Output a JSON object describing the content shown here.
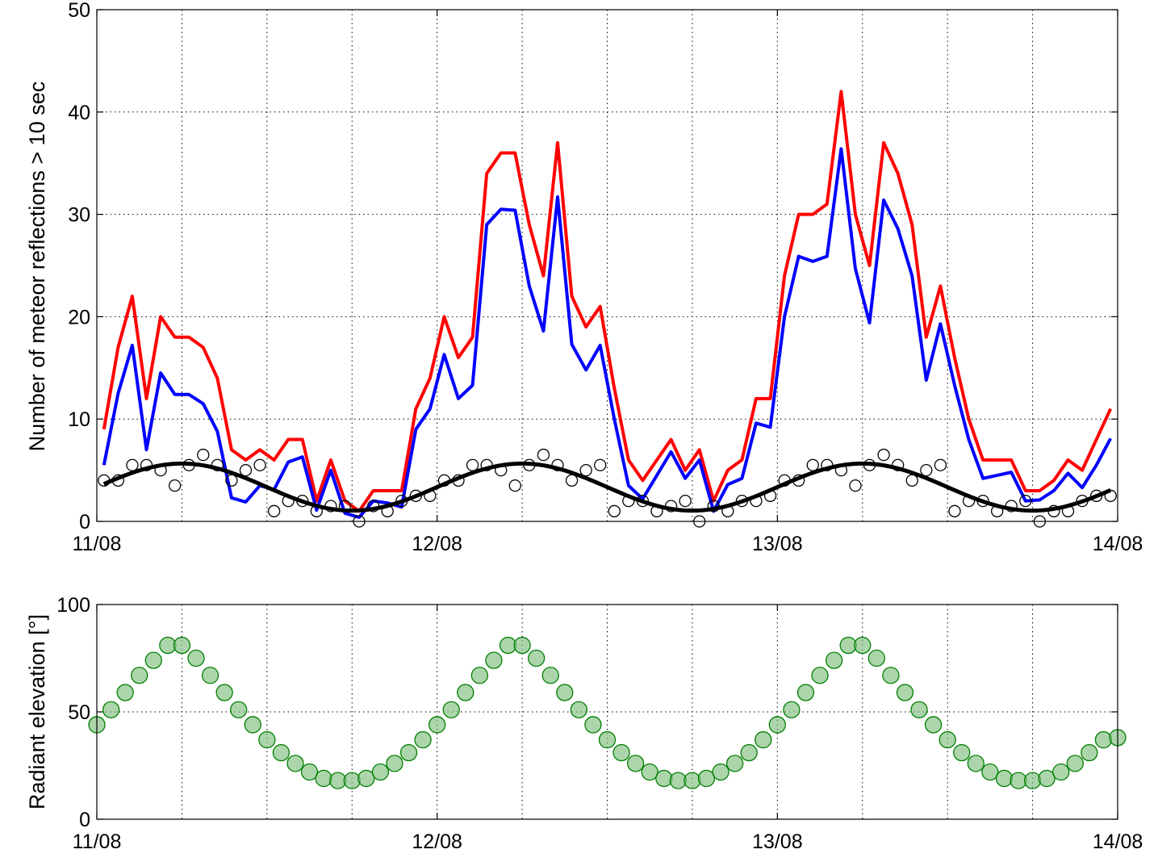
{
  "chart_data": [
    {
      "type": "line",
      "ylabel": "Number of meteor reflections > 10 sec",
      "xlabel": "",
      "x_tick_labels": [
        "11/08",
        "12/08",
        "13/08",
        "14/08"
      ],
      "y_ticks": [
        0,
        10,
        20,
        30,
        40,
        50
      ],
      "xlim": [
        0,
        72
      ],
      "ylim": [
        0,
        50
      ],
      "grid": true,
      "x_units": "hours from 11/08 00:00",
      "series": [
        {
          "style": "line",
          "color": "#ff0000",
          "x": [
            0.5,
            1.5,
            2.5,
            3.5,
            4.5,
            5.5,
            6.5,
            7.5,
            8.5,
            9.5,
            10.5,
            11.5,
            12.5,
            13.5,
            14.5,
            15.5,
            16.5,
            17.5,
            18.5,
            19.5,
            20.5,
            21.5,
            22.5,
            23.5,
            24.5,
            25.5,
            26.5,
            27.5,
            28.5,
            29.5,
            30.5,
            31.5,
            32.5,
            33.5,
            34.5,
            35.5,
            36.5,
            37.5,
            38.5,
            39.5,
            40.5,
            41.5,
            42.5,
            43.5,
            44.5,
            45.5,
            46.5,
            47.5,
            48.5,
            49.5,
            50.5,
            51.5,
            52.5,
            53.5,
            54.5,
            55.5,
            56.5,
            57.5,
            58.5,
            59.5,
            60.5,
            61.5,
            62.5,
            63.5,
            64.5,
            65.5,
            66.5,
            67.5,
            68.5,
            69.5,
            70.5,
            71.5
          ],
          "values": [
            9,
            17,
            22,
            12,
            20,
            18,
            18,
            17,
            14,
            7,
            6,
            7,
            6,
            8,
            8,
            2,
            6,
            2,
            1,
            3,
            3,
            3,
            11,
            14,
            20,
            16,
            18,
            34,
            36,
            36,
            29,
            24,
            37,
            22,
            19,
            21,
            13,
            6,
            4,
            6,
            8,
            5,
            7,
            2,
            5,
            6,
            12,
            12,
            24,
            30,
            30,
            31,
            42,
            30,
            25,
            37,
            34,
            29,
            18,
            23,
            16,
            10,
            6,
            6,
            6,
            3,
            3,
            4,
            6,
            5,
            8,
            11
          ]
        },
        {
          "style": "line",
          "color": "#0000ff",
          "x": [
            0.5,
            1.5,
            2.5,
            3.5,
            4.5,
            5.5,
            6.5,
            7.5,
            8.5,
            9.5,
            10.5,
            11.5,
            12.5,
            13.5,
            14.5,
            15.5,
            16.5,
            17.5,
            18.5,
            19.5,
            20.5,
            21.5,
            22.5,
            23.5,
            24.5,
            25.5,
            26.5,
            27.5,
            28.5,
            29.5,
            30.5,
            31.5,
            32.5,
            33.5,
            34.5,
            35.5,
            36.5,
            37.5,
            38.5,
            39.5,
            40.5,
            41.5,
            42.5,
            43.5,
            44.5,
            45.5,
            46.5,
            47.5,
            48.5,
            49.5,
            50.5,
            51.5,
            52.5,
            53.5,
            54.5,
            55.5,
            56.5,
            57.5,
            58.5,
            59.5,
            60.5,
            61.5,
            62.5,
            63.5,
            64.5,
            65.5,
            66.5,
            67.5,
            68.5,
            69.5,
            70.5,
            71.5
          ],
          "values": [
            5.5,
            12.5,
            17.2,
            7,
            14.5,
            12.4,
            12.4,
            11.5,
            8.8,
            2.3,
            1.9,
            3.5,
            3.1,
            5.8,
            6.3,
            1.1,
            5,
            0.8,
            0.4,
            2,
            1.8,
            1.4,
            9,
            11,
            16.3,
            12,
            13.3,
            29,
            30.5,
            30.4,
            23,
            18.6,
            31.7,
            17.3,
            14.8,
            17.2,
            10,
            3.5,
            2.2,
            4.5,
            6.8,
            4.2,
            6,
            1,
            3.6,
            4.2,
            9.6,
            9.2,
            20,
            25.9,
            25.4,
            25.9,
            36.4,
            24.7,
            19.4,
            31.4,
            28.6,
            24,
            13.8,
            19.3,
            13.3,
            8,
            4.2,
            4.5,
            4.8,
            2,
            2.1,
            3,
            4.7,
            3.3,
            5.5,
            8.1
          ]
        },
        {
          "style": "markers",
          "marker": "open-circle",
          "color": "#000000",
          "x": [
            0.5,
            1.5,
            2.5,
            3.5,
            4.5,
            5.5,
            6.5,
            7.5,
            8.5,
            9.5,
            10.5,
            11.5,
            12.5,
            13.5,
            14.5,
            15.5,
            16.5,
            17.5,
            18.5,
            19.5,
            20.5,
            21.5,
            22.5,
            23.5,
            24.5,
            25.5,
            26.5,
            27.5,
            28.5,
            29.5,
            30.5,
            31.5,
            32.5,
            33.5,
            34.5,
            35.5,
            36.5,
            37.5,
            38.5,
            39.5,
            40.5,
            41.5,
            42.5,
            43.5,
            44.5,
            45.5,
            46.5,
            47.5,
            48.5,
            49.5,
            50.5,
            51.5,
            52.5,
            53.5,
            54.5,
            55.5,
            56.5,
            57.5,
            58.5,
            59.5,
            60.5,
            61.5,
            62.5,
            63.5,
            64.5,
            65.5,
            66.5,
            67.5,
            68.5,
            69.5,
            70.5,
            71.5
          ],
          "values": [
            4,
            4,
            5.5,
            5.5,
            5,
            3.5,
            5.5,
            6.5,
            5.5,
            4,
            5,
            5.5,
            1,
            2,
            2,
            1,
            1.5,
            1.5,
            0,
            1.5,
            1,
            2,
            2.5,
            2.5,
            4,
            4,
            5.5,
            5.5,
            5,
            3.5,
            5.5,
            6.5,
            5.5,
            4,
            5,
            5.5,
            1,
            2,
            2,
            1,
            1.5,
            2,
            0,
            1.5,
            1,
            2,
            2,
            2.5,
            4,
            4,
            5.5,
            5.5,
            5,
            3.5,
            5.5,
            6.5,
            5.5,
            4,
            5,
            5.5,
            1,
            2,
            2,
            1,
            1.5,
            2,
            0,
            1,
            1,
            2,
            2.5,
            2.5
          ]
        },
        {
          "style": "smooth-line",
          "color": "#000000",
          "function": "3.35 + 2.3*cos(2*pi*(t-6)/24)",
          "t_range": [
            0.5,
            71.5
          ]
        }
      ]
    },
    {
      "type": "scatter",
      "ylabel": "Radiant elevation [°]",
      "xlabel": "",
      "x_tick_labels": [
        "11/08",
        "12/08",
        "13/08",
        "14/08"
      ],
      "y_ticks": [
        0,
        50,
        100
      ],
      "xlim": [
        0,
        72
      ],
      "ylim": [
        0,
        100
      ],
      "grid": true,
      "x_units": "hours from 11/08 00:00",
      "series": [
        {
          "style": "markers",
          "marker": "filled-circle",
          "color": "#7fbf7f",
          "edge_color": "#007f00",
          "x": [
            0,
            1,
            2,
            3,
            4,
            5,
            6,
            7,
            8,
            9,
            10,
            11,
            12,
            13,
            14,
            15,
            16,
            17,
            18,
            19,
            20,
            21,
            22,
            23,
            24,
            25,
            26,
            27,
            28,
            29,
            30,
            31,
            32,
            33,
            34,
            35,
            36,
            37,
            38,
            39,
            40,
            41,
            42,
            43,
            44,
            45,
            46,
            47,
            48,
            49,
            50,
            51,
            52,
            53,
            54,
            55,
            56,
            57,
            58,
            59,
            60,
            61,
            62,
            63,
            64,
            65,
            66,
            67,
            68,
            69,
            70,
            71,
            72
          ],
          "values": [
            44,
            51,
            59,
            67,
            74,
            81,
            81,
            75,
            67,
            59,
            51,
            44,
            37,
            31,
            26,
            22,
            19,
            18,
            18,
            19,
            22,
            26,
            31,
            37,
            44,
            51,
            59,
            67,
            74,
            81,
            81,
            75,
            67,
            59,
            51,
            44,
            37,
            31,
            26,
            22,
            19,
            18,
            18,
            19,
            22,
            26,
            31,
            37,
            44,
            51,
            59,
            67,
            74,
            81,
            81,
            75,
            67,
            59,
            51,
            44,
            37,
            31,
            26,
            22,
            19,
            18,
            18,
            19,
            22,
            26,
            31,
            37,
            38
          ]
        }
      ]
    }
  ]
}
